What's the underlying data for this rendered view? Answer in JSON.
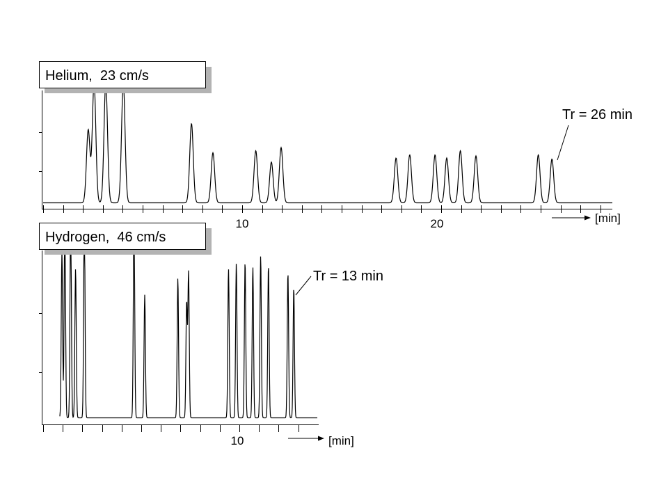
{
  "chart_data": [
    {
      "type": "line",
      "title": "Helium,  23 cm/s",
      "xlabel": "[min]",
      "xlim": [
        -10,
        28.5
      ],
      "x_tick_labels": [
        "10",
        "20"
      ],
      "x_tick_label_values": [
        10,
        20
      ],
      "annotation": "Tr = 26 min",
      "annotation_peak_time": 26,
      "series": [
        {
          "peaks": [
            {
              "t": 2.1,
              "height": 0.7
            },
            {
              "t": 2.4,
              "height": 1.15
            },
            {
              "t": 3.0,
              "height": 1.15
            },
            {
              "t": 3.9,
              "height": 1.15
            },
            {
              "t": 7.4,
              "height": 0.76
            },
            {
              "t": 8.5,
              "height": 0.48
            },
            {
              "t": 10.7,
              "height": 0.5
            },
            {
              "t": 11.5,
              "height": 0.39
            },
            {
              "t": 12.0,
              "height": 0.53
            },
            {
              "t": 17.9,
              "height": 0.43
            },
            {
              "t": 18.6,
              "height": 0.46
            },
            {
              "t": 19.9,
              "height": 0.46
            },
            {
              "t": 20.5,
              "height": 0.43
            },
            {
              "t": 21.2,
              "height": 0.5
            },
            {
              "t": 22.0,
              "height": 0.45
            },
            {
              "t": 25.2,
              "height": 0.46
            },
            {
              "t": 25.9,
              "height": 0.42
            }
          ]
        }
      ]
    },
    {
      "type": "line",
      "title": "Hydrogen,  46 cm/s",
      "xlabel": "[min]",
      "xlim": [
        -10,
        14
      ],
      "x_tick_labels": [
        "10"
      ],
      "x_tick_label_values": [
        10
      ],
      "annotation": "Tr = 13 min",
      "annotation_peak_time": 13,
      "series": [
        {
          "peaks": [
            {
              "t": 1.0,
              "height": 0.9
            },
            {
              "t": 1.15,
              "height": 1.1
            },
            {
              "t": 1.45,
              "height": 1.1
            },
            {
              "t": 1.7,
              "height": 0.8
            },
            {
              "t": 2.15,
              "height": 1.1
            },
            {
              "t": 4.7,
              "height": 1.1
            },
            {
              "t": 5.25,
              "height": 0.66
            },
            {
              "t": 6.95,
              "height": 0.75
            },
            {
              "t": 7.4,
              "height": 0.62
            },
            {
              "t": 7.5,
              "height": 0.78
            },
            {
              "t": 9.55,
              "height": 0.8
            },
            {
              "t": 9.95,
              "height": 0.83
            },
            {
              "t": 10.4,
              "height": 0.84
            },
            {
              "t": 10.8,
              "height": 0.81
            },
            {
              "t": 11.2,
              "height": 0.87
            },
            {
              "t": 11.6,
              "height": 0.82
            },
            {
              "t": 12.6,
              "height": 0.78
            },
            {
              "t": 12.9,
              "height": 0.7
            }
          ]
        }
      ]
    }
  ]
}
